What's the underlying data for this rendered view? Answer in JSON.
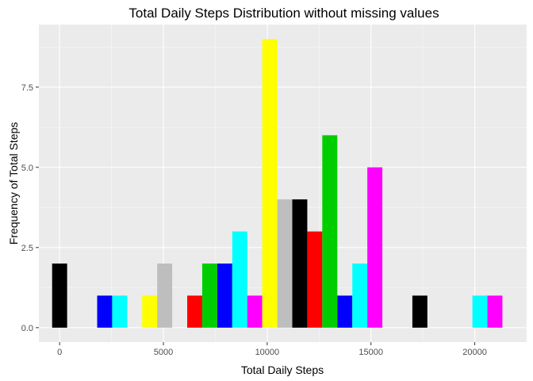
{
  "chart_data": {
    "type": "bar",
    "title": "Total Daily Steps Distribution without missing values",
    "xlabel": "Total Daily Steps",
    "ylabel": "Frequency of Total Steps",
    "xlim": [
      -1000,
      22500
    ],
    "ylim": [
      -0.45,
      9.45
    ],
    "x_ticks": [
      0,
      5000,
      10000,
      15000,
      20000
    ],
    "x_tick_labels": [
      "0",
      "5000",
      "10000",
      "15000",
      "20000"
    ],
    "y_ticks": [
      0,
      2.5,
      5,
      7.5
    ],
    "y_tick_labels": [
      "0.0",
      "2.5",
      "5.0",
      "7.5"
    ],
    "grid": true,
    "legend": "none",
    "bin_width": 723,
    "bins": [
      {
        "center": 0,
        "count": 2,
        "color": "#000000"
      },
      {
        "center": 2170,
        "count": 1,
        "color": "#0000ff"
      },
      {
        "center": 2893,
        "count": 1,
        "color": "#00ffff"
      },
      {
        "center": 4339,
        "count": 1,
        "color": "#ffff00"
      },
      {
        "center": 5062,
        "count": 2,
        "color": "#bebebe"
      },
      {
        "center": 6508,
        "count": 1,
        "color": "#ff0000"
      },
      {
        "center": 7231,
        "count": 2,
        "color": "#00cd00"
      },
      {
        "center": 7955,
        "count": 2,
        "color": "#0000ff"
      },
      {
        "center": 8678,
        "count": 3,
        "color": "#00ffff"
      },
      {
        "center": 9401,
        "count": 1,
        "color": "#ff00ff"
      },
      {
        "center": 10124,
        "count": 9,
        "color": "#ffff00"
      },
      {
        "center": 10847,
        "count": 4,
        "color": "#bebebe"
      },
      {
        "center": 11570,
        "count": 4,
        "color": "#000000"
      },
      {
        "center": 12293,
        "count": 3,
        "color": "#ff0000"
      },
      {
        "center": 13016,
        "count": 6,
        "color": "#00cd00"
      },
      {
        "center": 13739,
        "count": 1,
        "color": "#0000ff"
      },
      {
        "center": 14463,
        "count": 2,
        "color": "#00ffff"
      },
      {
        "center": 15186,
        "count": 5,
        "color": "#ff00ff"
      },
      {
        "center": 17355,
        "count": 1,
        "color": "#000000"
      },
      {
        "center": 20248,
        "count": 1,
        "color": "#00ffff"
      },
      {
        "center": 20971,
        "count": 1,
        "color": "#ff00ff"
      }
    ]
  }
}
